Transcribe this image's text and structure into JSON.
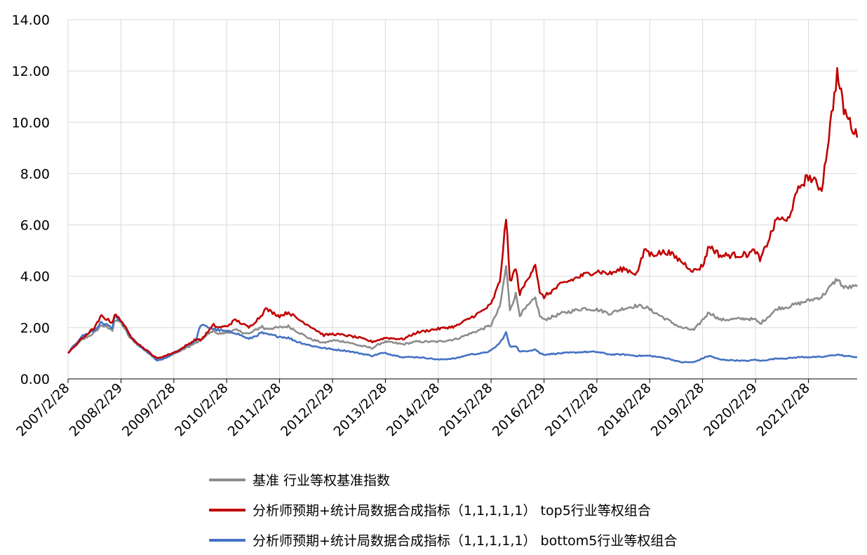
{
  "chart_data": {
    "type": "line",
    "title": "",
    "xlabel": "",
    "ylabel": "",
    "ylim": [
      0,
      14
    ],
    "yticks": [
      "0.00",
      "2.00",
      "4.00",
      "6.00",
      "8.00",
      "10.00",
      "12.00",
      "14.00"
    ],
    "x_range": [
      "2007/2/28",
      "2022/1/31"
    ],
    "xticks": [
      "2007/2/28",
      "2008/2/29",
      "2009/2/28",
      "2010/2/28",
      "2011/2/28",
      "2012/2/29",
      "2013/2/28",
      "2014/2/28",
      "2015/2/28",
      "2016/2/29",
      "2017/2/28",
      "2018/2/28",
      "2019/2/28",
      "2020/2/29",
      "2021/2/28"
    ],
    "grid": "vertical and horizontal",
    "legend_position": "bottom",
    "series": [
      {
        "name": "基准 行业等权基准指数",
        "color": "#8c8c8c",
        "points": [
          [
            "2007/2/28",
            1.0
          ],
          [
            "2007/5/31",
            1.5
          ],
          [
            "2007/8/31",
            1.8
          ],
          [
            "2007/10/16",
            2.1
          ],
          [
            "2007/12/31",
            1.9
          ],
          [
            "2008/1/15",
            2.3
          ],
          [
            "2008/2/29",
            2.2
          ],
          [
            "2008/4/30",
            1.6
          ],
          [
            "2008/6/30",
            1.3
          ],
          [
            "2008/9/30",
            0.9
          ],
          [
            "2008/11/4",
            0.75
          ],
          [
            "2008/12/31",
            0.85
          ],
          [
            "2009/3/31",
            1.05
          ],
          [
            "2009/7/31",
            1.4
          ],
          [
            "2009/8/31",
            1.5
          ],
          [
            "2009/11/30",
            1.9
          ],
          [
            "2009/12/31",
            1.75
          ],
          [
            "2010/2/28",
            1.8
          ],
          [
            "2010/4/30",
            1.9
          ],
          [
            "2010/7/31",
            1.75
          ],
          [
            "2010/10/31",
            2.05
          ],
          [
            "2010/11/15",
            1.95
          ],
          [
            "2011/2/28",
            2.0
          ],
          [
            "2011/4/30",
            2.05
          ],
          [
            "2011/6/30",
            1.85
          ],
          [
            "2011/9/30",
            1.55
          ],
          [
            "2011/12/31",
            1.4
          ],
          [
            "2012/2/29",
            1.5
          ],
          [
            "2012/5/31",
            1.45
          ],
          [
            "2012/8/31",
            1.3
          ],
          [
            "2012/11/30",
            1.2
          ],
          [
            "2013/1/31",
            1.4
          ],
          [
            "2013/2/28",
            1.45
          ],
          [
            "2013/6/30",
            1.35
          ],
          [
            "2013/9/30",
            1.45
          ],
          [
            "2013/12/31",
            1.45
          ],
          [
            "2014/2/28",
            1.45
          ],
          [
            "2014/6/30",
            1.55
          ],
          [
            "2014/9/30",
            1.75
          ],
          [
            "2014/12/31",
            1.95
          ],
          [
            "2015/2/28",
            2.1
          ],
          [
            "2015/4/30",
            2.8
          ],
          [
            "2015/6/12",
            4.4
          ],
          [
            "2015/7/8",
            2.7
          ],
          [
            "2015/8/18",
            3.3
          ],
          [
            "2015/9/15",
            2.5
          ],
          [
            "2015/12/31",
            3.15
          ],
          [
            "2016/1/31",
            2.45
          ],
          [
            "2016/2/29",
            2.3
          ],
          [
            "2016/6/30",
            2.55
          ],
          [
            "2016/11/30",
            2.75
          ],
          [
            "2017/2/28",
            2.7
          ],
          [
            "2017/5/31",
            2.55
          ],
          [
            "2017/8/31",
            2.75
          ],
          [
            "2017/11/30",
            2.85
          ],
          [
            "2018/1/31",
            2.8
          ],
          [
            "2018/2/28",
            2.7
          ],
          [
            "2018/6/30",
            2.3
          ],
          [
            "2018/9/30",
            2.0
          ],
          [
            "2018/12/31",
            1.9
          ],
          [
            "2019/2/28",
            2.3
          ],
          [
            "2019/4/15",
            2.6
          ],
          [
            "2019/6/30",
            2.3
          ],
          [
            "2019/12/31",
            2.35
          ],
          [
            "2020/2/29",
            2.3
          ],
          [
            "2020/3/31",
            2.15
          ],
          [
            "2020/7/31",
            2.75
          ],
          [
            "2020/9/30",
            2.8
          ],
          [
            "2020/12/31",
            2.95
          ],
          [
            "2021/2/28",
            3.05
          ],
          [
            "2021/5/31",
            3.2
          ],
          [
            "2021/9/15",
            3.9
          ],
          [
            "2021/10/31",
            3.55
          ],
          [
            "2022/1/31",
            3.6
          ]
        ]
      },
      {
        "name": "分析师预期+统计局数据合成指标（1,1,1,1,1） top5行业等权组合",
        "color": "#c00000",
        "points": [
          [
            "2007/2/28",
            1.0
          ],
          [
            "2007/5/31",
            1.55
          ],
          [
            "2007/8/31",
            2.0
          ],
          [
            "2007/10/16",
            2.45
          ],
          [
            "2007/12/31",
            2.2
          ],
          [
            "2008/1/15",
            2.5
          ],
          [
            "2008/2/29",
            2.3
          ],
          [
            "2008/4/30",
            1.7
          ],
          [
            "2008/6/30",
            1.35
          ],
          [
            "2008/9/30",
            0.95
          ],
          [
            "2008/11/4",
            0.8
          ],
          [
            "2008/12/31",
            0.9
          ],
          [
            "2009/3/31",
            1.1
          ],
          [
            "2009/7/31",
            1.55
          ],
          [
            "2009/8/31",
            1.5
          ],
          [
            "2009/11/30",
            2.1
          ],
          [
            "2009/12/31",
            2.0
          ],
          [
            "2010/2/28",
            2.05
          ],
          [
            "2010/4/30",
            2.3
          ],
          [
            "2010/7/31",
            2.0
          ],
          [
            "2010/10/31",
            2.5
          ],
          [
            "2010/11/15",
            2.75
          ],
          [
            "2011/2/28",
            2.45
          ],
          [
            "2011/4/30",
            2.6
          ],
          [
            "2011/6/30",
            2.35
          ],
          [
            "2011/9/30",
            2.05
          ],
          [
            "2011/12/31",
            1.7
          ],
          [
            "2012/2/29",
            1.75
          ],
          [
            "2012/5/31",
            1.7
          ],
          [
            "2012/8/31",
            1.6
          ],
          [
            "2012/11/30",
            1.45
          ],
          [
            "2013/1/31",
            1.55
          ],
          [
            "2013/2/28",
            1.6
          ],
          [
            "2013/6/30",
            1.55
          ],
          [
            "2013/9/30",
            1.8
          ],
          [
            "2013/12/31",
            1.9
          ],
          [
            "2014/2/28",
            1.95
          ],
          [
            "2014/6/30",
            2.05
          ],
          [
            "2014/9/30",
            2.35
          ],
          [
            "2014/12/31",
            2.65
          ],
          [
            "2015/2/28",
            2.9
          ],
          [
            "2015/4/30",
            3.8
          ],
          [
            "2015/6/12",
            6.3
          ],
          [
            "2015/7/8",
            3.8
          ],
          [
            "2015/8/18",
            4.3
          ],
          [
            "2015/9/15",
            3.3
          ],
          [
            "2015/12/31",
            4.5
          ],
          [
            "2016/1/31",
            3.3
          ],
          [
            "2016/2/29",
            3.2
          ],
          [
            "2016/6/30",
            3.7
          ],
          [
            "2016/11/30",
            4.05
          ],
          [
            "2017/2/28",
            4.2
          ],
          [
            "2017/5/31",
            4.1
          ],
          [
            "2017/8/31",
            4.3
          ],
          [
            "2017/11/30",
            4.1
          ],
          [
            "2018/1/31",
            5.1
          ],
          [
            "2018/2/28",
            4.85
          ],
          [
            "2018/6/30",
            4.95
          ],
          [
            "2018/9/30",
            4.6
          ],
          [
            "2018/12/31",
            4.2
          ],
          [
            "2019/2/28",
            4.4
          ],
          [
            "2019/4/15",
            5.2
          ],
          [
            "2019/6/30",
            4.8
          ],
          [
            "2019/12/31",
            4.85
          ],
          [
            "2020/2/29",
            5.0
          ],
          [
            "2020/3/31",
            4.6
          ],
          [
            "2020/7/31",
            6.3
          ],
          [
            "2020/9/30",
            6.1
          ],
          [
            "2020/12/31",
            7.5
          ],
          [
            "2021/2/28",
            7.9
          ],
          [
            "2021/5/31",
            7.4
          ],
          [
            "2021/9/15",
            11.9
          ],
          [
            "2021/10/31",
            10.5
          ],
          [
            "2022/1/31",
            9.4
          ]
        ]
      },
      {
        "name": "分析师预期+统计局数据合成指标（1,1,1,1,1） bottom5行业等权组合",
        "color": "#4472c4",
        "points": [
          [
            "2007/2/28",
            1.0
          ],
          [
            "2007/5/31",
            1.65
          ],
          [
            "2007/8/31",
            1.9
          ],
          [
            "2007/10/16",
            2.2
          ],
          [
            "2007/12/31",
            2.0
          ],
          [
            "2008/1/15",
            2.4
          ],
          [
            "2008/2/29",
            2.25
          ],
          [
            "2008/4/30",
            1.7
          ],
          [
            "2008/6/30",
            1.3
          ],
          [
            "2008/9/30",
            0.9
          ],
          [
            "2008/11/4",
            0.7
          ],
          [
            "2008/12/31",
            0.8
          ],
          [
            "2009/3/31",
            1.1
          ],
          [
            "2009/7/31",
            1.5
          ],
          [
            "2009/8/31",
            2.1
          ],
          [
            "2009/11/30",
            1.95
          ],
          [
            "2009/12/31",
            1.9
          ],
          [
            "2010/2/28",
            1.85
          ],
          [
            "2010/4/30",
            1.8
          ],
          [
            "2010/7/31",
            1.55
          ],
          [
            "2010/10/31",
            1.8
          ],
          [
            "2010/11/15",
            1.75
          ],
          [
            "2011/2/28",
            1.65
          ],
          [
            "2011/4/30",
            1.6
          ],
          [
            "2011/6/30",
            1.45
          ],
          [
            "2011/9/30",
            1.3
          ],
          [
            "2011/12/31",
            1.2
          ],
          [
            "2012/2/29",
            1.15
          ],
          [
            "2012/5/31",
            1.1
          ],
          [
            "2012/8/31",
            1.0
          ],
          [
            "2012/11/30",
            0.9
          ],
          [
            "2013/1/31",
            1.0
          ],
          [
            "2013/2/28",
            1.0
          ],
          [
            "2013/6/30",
            0.85
          ],
          [
            "2013/9/30",
            0.85
          ],
          [
            "2013/12/31",
            0.8
          ],
          [
            "2014/2/28",
            0.75
          ],
          [
            "2014/6/30",
            0.8
          ],
          [
            "2014/9/30",
            0.95
          ],
          [
            "2014/12/31",
            1.0
          ],
          [
            "2015/2/28",
            1.1
          ],
          [
            "2015/4/30",
            1.4
          ],
          [
            "2015/6/12",
            1.8
          ],
          [
            "2015/7/8",
            1.25
          ],
          [
            "2015/8/18",
            1.3
          ],
          [
            "2015/9/15",
            1.05
          ],
          [
            "2015/12/31",
            1.15
          ],
          [
            "2016/1/31",
            1.0
          ],
          [
            "2016/2/29",
            0.95
          ],
          [
            "2016/6/30",
            1.0
          ],
          [
            "2016/11/30",
            1.05
          ],
          [
            "2017/2/28",
            1.05
          ],
          [
            "2017/5/31",
            0.95
          ],
          [
            "2017/8/31",
            0.95
          ],
          [
            "2017/11/30",
            0.9
          ],
          [
            "2018/1/31",
            0.9
          ],
          [
            "2018/2/28",
            0.9
          ],
          [
            "2018/6/30",
            0.8
          ],
          [
            "2018/9/30",
            0.65
          ],
          [
            "2018/12/31",
            0.65
          ],
          [
            "2019/2/28",
            0.8
          ],
          [
            "2019/4/15",
            0.9
          ],
          [
            "2019/6/30",
            0.75
          ],
          [
            "2019/12/31",
            0.7
          ],
          [
            "2020/2/29",
            0.75
          ],
          [
            "2020/3/31",
            0.7
          ],
          [
            "2020/7/31",
            0.8
          ],
          [
            "2020/9/30",
            0.8
          ],
          [
            "2020/12/31",
            0.85
          ],
          [
            "2021/2/28",
            0.85
          ],
          [
            "2021/5/31",
            0.85
          ],
          [
            "2021/9/15",
            0.95
          ],
          [
            "2021/10/31",
            0.9
          ],
          [
            "2022/1/31",
            0.85
          ]
        ]
      }
    ]
  }
}
